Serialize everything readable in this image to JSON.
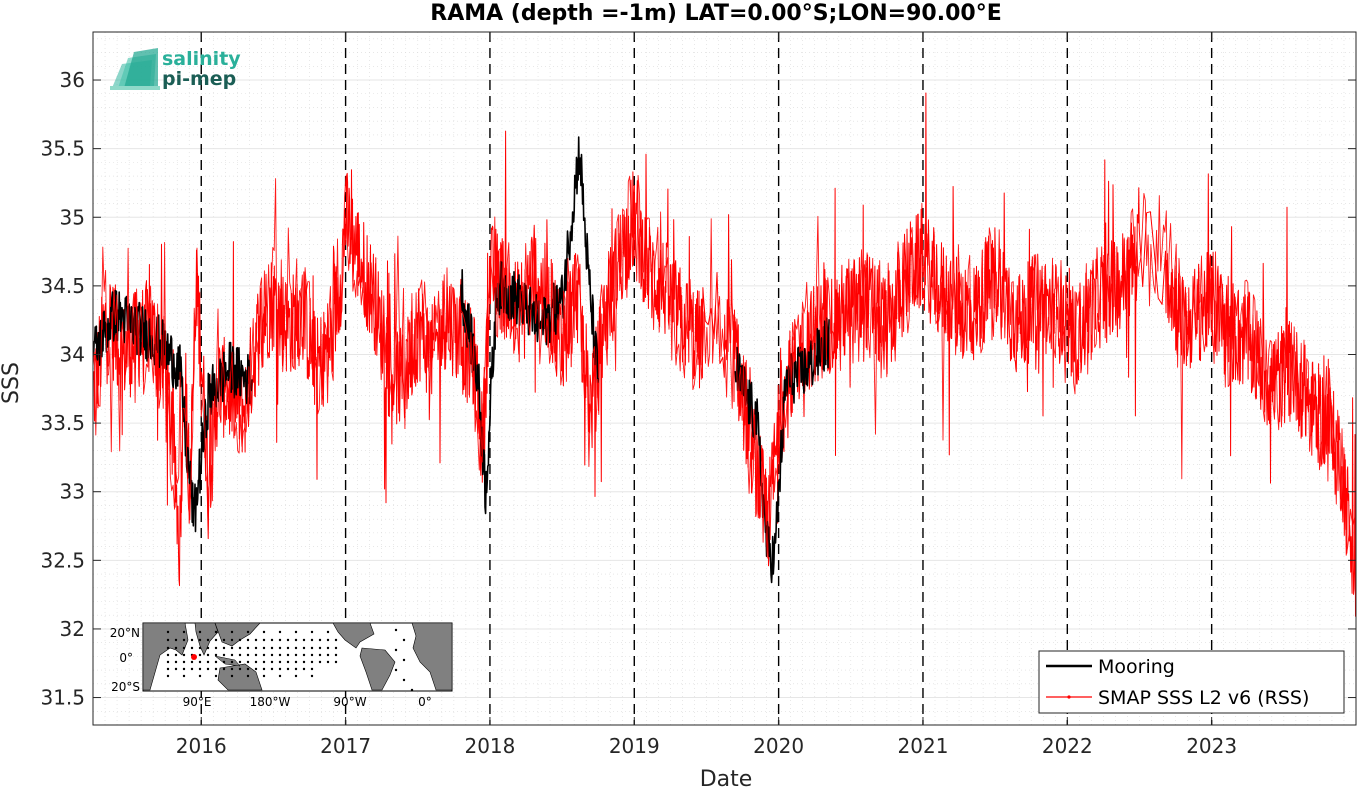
{
  "chart_data": {
    "type": "line",
    "title": "RAMA (depth =-1m) LAT=0.00°S;LON=90.00°E",
    "xlabel": "Date",
    "ylabel": "SSS",
    "xlim": [
      2015.25,
      2024.0
    ],
    "ylim": [
      31.3,
      36.35
    ],
    "x_ticks": [
      2016,
      2017,
      2018,
      2019,
      2020,
      2021,
      2022,
      2023
    ],
    "x_tick_labels": [
      "2016",
      "2017",
      "2018",
      "2019",
      "2020",
      "2021",
      "2022",
      "2023"
    ],
    "y_ticks": [
      31.5,
      32,
      32.5,
      33,
      33.5,
      34,
      34.5,
      35,
      35.5,
      36
    ],
    "y_tick_labels": [
      "31.5",
      "32",
      "32.5",
      "33",
      "33.5",
      "34",
      "34.5",
      "35",
      "35.5",
      "36"
    ],
    "grid": true,
    "vertical_dashed_lines": [
      2016,
      2017,
      2018,
      2019,
      2020,
      2021,
      2022,
      2023
    ],
    "legend_position": "bottom-right",
    "series": [
      {
        "name": "Mooring",
        "color": "#000000",
        "x": [
          2015.25,
          2015.4,
          2015.55,
          2015.7,
          2015.85,
          2015.9,
          2015.95,
          2016.05,
          2016.2,
          2016.35,
          2017.8,
          2017.92,
          2017.97,
          2018.05,
          2018.2,
          2018.35,
          2018.5,
          2018.62,
          2018.68,
          2018.75,
          2019.7,
          2019.85,
          2019.92,
          2019.97,
          2020.05,
          2020.2,
          2020.35
        ],
        "y": [
          34.0,
          34.3,
          34.2,
          34.1,
          33.9,
          33.3,
          32.8,
          33.7,
          33.9,
          33.8,
          34.5,
          33.8,
          33.0,
          34.5,
          34.4,
          34.2,
          34.4,
          35.5,
          34.6,
          33.8,
          33.9,
          33.5,
          32.6,
          32.5,
          33.8,
          33.9,
          34.1
        ]
      },
      {
        "name": "SMAP SSS L2 v6 (RSS)",
        "color": "#ff0000",
        "x": [
          2015.25,
          2015.35,
          2015.45,
          2015.55,
          2015.65,
          2015.75,
          2015.8,
          2015.85,
          2015.88,
          2015.92,
          2015.97,
          2016.05,
          2016.12,
          2016.2,
          2016.3,
          2016.4,
          2016.5,
          2016.6,
          2016.7,
          2016.8,
          2016.9,
          2016.97,
          2017.0,
          2017.1,
          2017.2,
          2017.3,
          2017.4,
          2017.5,
          2017.6,
          2017.7,
          2017.8,
          2017.9,
          2017.95,
          2018.0,
          2018.1,
          2018.2,
          2018.3,
          2018.4,
          2018.5,
          2018.6,
          2018.7,
          2018.8,
          2018.9,
          2019.0,
          2019.1,
          2019.2,
          2019.3,
          2019.45,
          2019.55,
          2019.7,
          2019.8,
          2019.88,
          2019.93,
          2019.97,
          2020.02,
          2020.1,
          2020.2,
          2020.3,
          2020.45,
          2020.6,
          2020.75,
          2020.9,
          2021.0,
          2021.1,
          2021.2,
          2021.35,
          2021.5,
          2021.65,
          2021.8,
          2021.95,
          2022.05,
          2022.2,
          2022.35,
          2022.5,
          2022.62,
          2022.72,
          2022.8,
          2022.9,
          2023.0,
          2023.1,
          2023.25,
          2023.4,
          2023.55,
          2023.7,
          2023.8,
          2023.9,
          2024.0
        ],
        "y": [
          33.7,
          34.3,
          34.0,
          34.1,
          34.2,
          33.9,
          33.4,
          32.6,
          33.9,
          33.0,
          34.5,
          33.1,
          33.8,
          33.7,
          33.6,
          34.2,
          34.4,
          34.2,
          34.3,
          33.9,
          34.1,
          34.6,
          35.0,
          34.7,
          34.4,
          33.9,
          33.8,
          34.2,
          34.0,
          34.3,
          34.1,
          33.9,
          33.3,
          34.6,
          34.5,
          34.3,
          34.6,
          34.4,
          34.1,
          34.5,
          33.6,
          34.3,
          34.7,
          35.0,
          34.6,
          34.5,
          34.3,
          34.1,
          34.3,
          34.0,
          33.4,
          33.0,
          32.8,
          33.2,
          33.6,
          33.9,
          34.1,
          34.2,
          34.3,
          34.4,
          34.2,
          34.6,
          34.7,
          34.5,
          34.4,
          34.3,
          34.6,
          34.2,
          34.4,
          34.3,
          34.1,
          34.4,
          34.5,
          34.7,
          34.8,
          34.5,
          34.2,
          34.3,
          34.4,
          34.2,
          34.1,
          33.8,
          33.9,
          33.6,
          33.5,
          33.2,
          32.4
        ]
      }
    ]
  },
  "inset_map": {
    "lat_labels": [
      "20°N",
      "0°",
      "20°S"
    ],
    "lon_labels": [
      "90°E",
      "180°W",
      "90°W",
      "0°"
    ]
  },
  "logo": {
    "line1": "salinity",
    "line2": "pi-mep"
  }
}
